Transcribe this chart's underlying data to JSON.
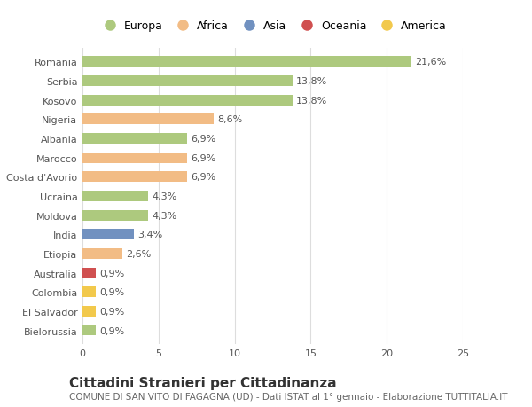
{
  "categories": [
    "Romania",
    "Serbia",
    "Kosovo",
    "Nigeria",
    "Albania",
    "Marocco",
    "Costa d'Avorio",
    "Ucraina",
    "Moldova",
    "India",
    "Etiopia",
    "Australia",
    "Colombia",
    "El Salvador",
    "Bielorussia"
  ],
  "values": [
    21.6,
    13.8,
    13.8,
    8.6,
    6.9,
    6.9,
    6.9,
    4.3,
    4.3,
    3.4,
    2.6,
    0.9,
    0.9,
    0.9,
    0.9
  ],
  "labels": [
    "21,6%",
    "13,8%",
    "13,8%",
    "8,6%",
    "6,9%",
    "6,9%",
    "6,9%",
    "4,3%",
    "4,3%",
    "3,4%",
    "2,6%",
    "0,9%",
    "0,9%",
    "0,9%",
    "0,9%"
  ],
  "bar_colors": [
    "#adc97e",
    "#adc97e",
    "#adc97e",
    "#f2bc85",
    "#adc97e",
    "#f2bc85",
    "#f2bc85",
    "#adc97e",
    "#adc97e",
    "#7191c0",
    "#f2bc85",
    "#d05050",
    "#f2c94c",
    "#f2c94c",
    "#adc97e"
  ],
  "continent_colors": {
    "Europa": "#adc97e",
    "Africa": "#f2bc85",
    "Asia": "#7191c0",
    "Oceania": "#d05050",
    "America": "#f2c94c"
  },
  "legend_labels": [
    "Europa",
    "Africa",
    "Asia",
    "Oceania",
    "America"
  ],
  "title": "Cittadini Stranieri per Cittadinanza",
  "subtitle": "COMUNE DI SAN VITO DI FAGAGNA (UD) - Dati ISTAT al 1° gennaio - Elaborazione TUTTITALIA.IT",
  "xlim": [
    0,
    25
  ],
  "xticks": [
    0,
    5,
    10,
    15,
    20,
    25
  ],
  "background_color": "#ffffff",
  "grid_color": "#dddddd",
  "bar_height": 0.55,
  "label_fontsize": 8,
  "tick_fontsize": 8,
  "legend_fontsize": 9,
  "title_fontsize": 11,
  "subtitle_fontsize": 7.5
}
